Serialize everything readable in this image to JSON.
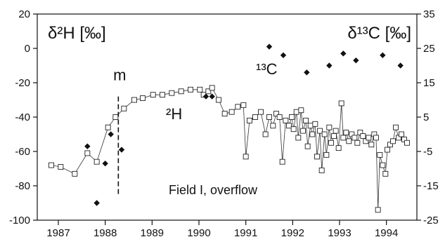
{
  "chart_data": {
    "type": "scatter",
    "title": "",
    "annotation": "Field I, overflow",
    "x_ticks": [
      "1987",
      "1988",
      "1989",
      "1990",
      "1991",
      "1992",
      "1993",
      "1994"
    ],
    "x_tick_values": [
      1987,
      1988,
      1989,
      1990,
      1991,
      1992,
      1993,
      1994
    ],
    "xlim": [
      1986.55,
      1994.65
    ],
    "left_axis": {
      "label": "δ²H [‰]",
      "ylim": [
        -100,
        20
      ],
      "ticks": [
        20,
        0,
        -20,
        -40,
        -60,
        -80,
        -100
      ],
      "tick_labels": [
        "20",
        "0",
        "-20",
        "-40",
        "-60",
        "-80",
        "-100"
      ]
    },
    "right_axis": {
      "label": "δ¹³C [‰]",
      "ylim": [
        -25,
        35
      ],
      "ticks": [
        35,
        25,
        15,
        5,
        -5,
        -15,
        -25
      ],
      "tick_labels": [
        "35",
        "25",
        "15",
        "5",
        "-5",
        "-15",
        "-25"
      ]
    },
    "marker": {
      "x": 1988.28,
      "label": "m"
    },
    "series": [
      {
        "name": "²H",
        "axis": "left",
        "style": "line-open-square",
        "points": [
          [
            1986.85,
            -68
          ],
          [
            1987.05,
            -69
          ],
          [
            1987.35,
            -73
          ],
          [
            1987.62,
            -61
          ],
          [
            1987.82,
            -66
          ],
          [
            1988.06,
            -46
          ],
          [
            1988.22,
            -40
          ],
          [
            1988.4,
            -35
          ],
          [
            1988.62,
            -30
          ],
          [
            1988.8,
            -29
          ],
          [
            1989.02,
            -27
          ],
          [
            1989.22,
            -27
          ],
          [
            1989.42,
            -26
          ],
          [
            1989.62,
            -25
          ],
          [
            1989.82,
            -24
          ],
          [
            1990.02,
            -24
          ],
          [
            1990.1,
            -27
          ],
          [
            1990.2,
            -25
          ],
          [
            1990.28,
            -23
          ],
          [
            1990.42,
            -30
          ],
          [
            1990.55,
            -38
          ],
          [
            1990.7,
            -37
          ],
          [
            1990.83,
            -34
          ],
          [
            1990.95,
            -33
          ],
          [
            1991.0,
            -63
          ],
          [
            1991.08,
            -42
          ],
          [
            1991.2,
            -40
          ],
          [
            1991.32,
            -37
          ],
          [
            1991.42,
            -50
          ],
          [
            1991.5,
            -40
          ],
          [
            1991.58,
            -45
          ],
          [
            1991.65,
            -38
          ],
          [
            1991.72,
            -40
          ],
          [
            1991.78,
            -66
          ],
          [
            1991.85,
            -42
          ],
          [
            1991.92,
            -45
          ],
          [
            1991.98,
            -40
          ],
          [
            1992.02,
            -47
          ],
          [
            1992.08,
            -37
          ],
          [
            1992.12,
            -52
          ],
          [
            1992.18,
            -36
          ],
          [
            1992.22,
            -48
          ],
          [
            1992.28,
            -42
          ],
          [
            1992.32,
            -57
          ],
          [
            1992.38,
            -45
          ],
          [
            1992.42,
            -50
          ],
          [
            1992.48,
            -44
          ],
          [
            1992.52,
            -63
          ],
          [
            1992.58,
            -48
          ],
          [
            1992.62,
            -71
          ],
          [
            1992.68,
            -50
          ],
          [
            1992.72,
            -62
          ],
          [
            1992.78,
            -46
          ],
          [
            1992.82,
            -55
          ],
          [
            1992.88,
            -51
          ],
          [
            1992.92,
            -48
          ],
          [
            1992.98,
            -58
          ],
          [
            1993.04,
            -32
          ],
          [
            1993.08,
            -52
          ],
          [
            1993.14,
            -49
          ],
          [
            1993.2,
            -54
          ],
          [
            1993.26,
            -50
          ],
          [
            1993.32,
            -52
          ],
          [
            1993.38,
            -55
          ],
          [
            1993.44,
            -49
          ],
          [
            1993.5,
            -51
          ],
          [
            1993.56,
            -54
          ],
          [
            1993.62,
            -52
          ],
          [
            1993.68,
            -56
          ],
          [
            1993.74,
            -50
          ],
          [
            1993.78,
            -52
          ],
          [
            1993.82,
            -94
          ],
          [
            1993.86,
            -62
          ],
          [
            1993.92,
            -68
          ],
          [
            1993.98,
            -73
          ],
          [
            1994.02,
            -59
          ],
          [
            1994.08,
            -56
          ],
          [
            1994.14,
            -54
          ],
          [
            1994.2,
            -46
          ],
          [
            1994.26,
            -52
          ],
          [
            1994.32,
            -50
          ],
          [
            1994.38,
            -53
          ],
          [
            1994.44,
            -55
          ]
        ]
      },
      {
        "name": "¹³C",
        "axis": "right",
        "style": "filled-diamond",
        "points": [
          [
            1987.62,
            -3.5
          ],
          [
            1987.82,
            -20
          ],
          [
            1988.0,
            -8.5
          ],
          [
            1988.12,
            0
          ],
          [
            1988.35,
            -4.5
          ],
          [
            1990.15,
            11
          ],
          [
            1990.28,
            11
          ],
          [
            1991.5,
            25.5
          ],
          [
            1991.8,
            23
          ],
          [
            1992.3,
            18
          ],
          [
            1992.78,
            20
          ],
          [
            1993.08,
            23.5
          ],
          [
            1993.35,
            21.5
          ],
          [
            1993.92,
            23
          ],
          [
            1994.3,
            20
          ]
        ]
      }
    ]
  }
}
